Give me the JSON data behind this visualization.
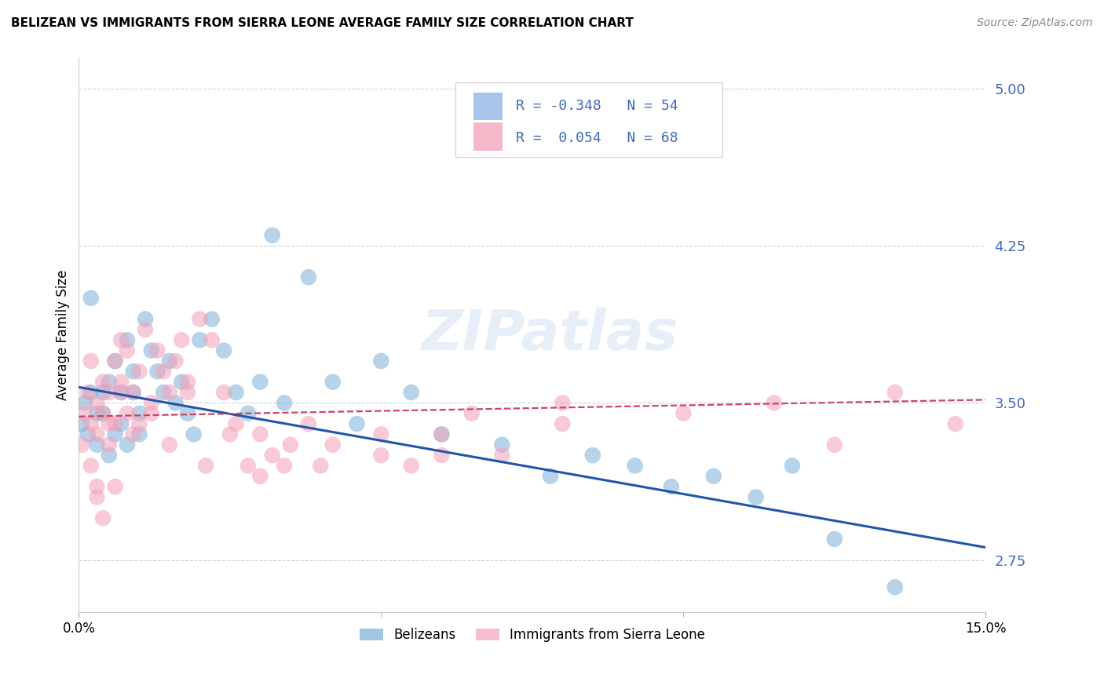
{
  "title": "BELIZEAN VS IMMIGRANTS FROM SIERRA LEONE AVERAGE FAMILY SIZE CORRELATION CHART",
  "source": "Source: ZipAtlas.com",
  "ylabel": "Average Family Size",
  "xlim": [
    0.0,
    0.15
  ],
  "ylim": [
    2.5,
    5.15
  ],
  "yticks": [
    2.75,
    3.5,
    4.25,
    5.0
  ],
  "ytick_labels": [
    "2.75",
    "3.50",
    "4.25",
    "5.00"
  ],
  "xticks": [
    0.0,
    0.15
  ],
  "xtick_labels": [
    "0.0%",
    "15.0%"
  ],
  "xticks_minor": [
    0.05,
    0.1
  ],
  "ytick_color": "#4169b8",
  "grid_color": "#cccccc",
  "background_color": "#ffffff",
  "watermark": "ZIPatlas",
  "legend_blue_label": "R = -0.348   N = 54",
  "legend_pink_label": "R =  0.054   N = 68",
  "legend_blue_color": "#a8c4e8",
  "legend_pink_color": "#f4b8c8",
  "scatter_blue_color": "#7ab0d8",
  "scatter_pink_color": "#f4a0b8",
  "scatter_alpha": 0.55,
  "scatter_size": 220,
  "blue_line_color": "#2255aa",
  "blue_line_lw": 2.2,
  "blue_line_x0": 0.0,
  "blue_line_y0": 3.575,
  "blue_line_x1": 0.15,
  "blue_line_y1": 2.81,
  "pink_line_color": "#cc4466",
  "pink_line_lw": 1.6,
  "pink_line_x0": 0.0,
  "pink_line_y0": 3.435,
  "pink_line_x1": 0.15,
  "pink_line_y1": 3.515,
  "blue_points_x": [
    0.0005,
    0.001,
    0.0015,
    0.002,
    0.002,
    0.003,
    0.003,
    0.004,
    0.004,
    0.005,
    0.005,
    0.006,
    0.006,
    0.007,
    0.007,
    0.008,
    0.008,
    0.009,
    0.009,
    0.01,
    0.01,
    0.011,
    0.012,
    0.013,
    0.014,
    0.015,
    0.016,
    0.017,
    0.018,
    0.019,
    0.02,
    0.022,
    0.024,
    0.026,
    0.028,
    0.03,
    0.032,
    0.034,
    0.038,
    0.042,
    0.046,
    0.05,
    0.055,
    0.06,
    0.07,
    0.078,
    0.085,
    0.092,
    0.098,
    0.105,
    0.112,
    0.118,
    0.125,
    0.135
  ],
  "blue_points_y": [
    3.4,
    3.5,
    3.35,
    3.55,
    4.0,
    3.45,
    3.3,
    3.55,
    3.45,
    3.25,
    3.6,
    3.35,
    3.7,
    3.55,
    3.4,
    3.3,
    3.8,
    3.55,
    3.65,
    3.45,
    3.35,
    3.9,
    3.75,
    3.65,
    3.55,
    3.7,
    3.5,
    3.6,
    3.45,
    3.35,
    3.8,
    3.9,
    3.75,
    3.55,
    3.45,
    3.6,
    4.3,
    3.5,
    4.1,
    3.6,
    3.4,
    3.7,
    3.55,
    3.35,
    3.3,
    3.15,
    3.25,
    3.2,
    3.1,
    3.15,
    3.05,
    3.2,
    2.85,
    2.62
  ],
  "pink_points_x": [
    0.0005,
    0.001,
    0.0015,
    0.002,
    0.002,
    0.003,
    0.003,
    0.004,
    0.004,
    0.005,
    0.005,
    0.006,
    0.006,
    0.007,
    0.007,
    0.008,
    0.008,
    0.009,
    0.01,
    0.01,
    0.011,
    0.012,
    0.013,
    0.014,
    0.015,
    0.016,
    0.017,
    0.018,
    0.02,
    0.022,
    0.024,
    0.026,
    0.028,
    0.03,
    0.032,
    0.034,
    0.038,
    0.042,
    0.05,
    0.055,
    0.06,
    0.065,
    0.07,
    0.08,
    0.003,
    0.005,
    0.007,
    0.009,
    0.012,
    0.015,
    0.018,
    0.021,
    0.025,
    0.03,
    0.035,
    0.04,
    0.05,
    0.06,
    0.08,
    0.1,
    0.115,
    0.125,
    0.135,
    0.145,
    0.002,
    0.003,
    0.004,
    0.006
  ],
  "pink_points_y": [
    3.3,
    3.45,
    3.55,
    3.4,
    3.7,
    3.5,
    3.35,
    3.6,
    3.45,
    3.3,
    3.55,
    3.7,
    3.4,
    3.8,
    3.6,
    3.45,
    3.75,
    3.55,
    3.4,
    3.65,
    3.85,
    3.5,
    3.75,
    3.65,
    3.55,
    3.7,
    3.8,
    3.6,
    3.9,
    3.8,
    3.55,
    3.4,
    3.2,
    3.35,
    3.25,
    3.2,
    3.4,
    3.3,
    3.25,
    3.2,
    3.35,
    3.45,
    3.25,
    3.5,
    3.1,
    3.4,
    3.55,
    3.35,
    3.45,
    3.3,
    3.55,
    3.2,
    3.35,
    3.15,
    3.3,
    3.2,
    3.35,
    3.25,
    3.4,
    3.45,
    3.5,
    3.3,
    3.55,
    3.4,
    3.2,
    3.05,
    2.95,
    3.1
  ]
}
